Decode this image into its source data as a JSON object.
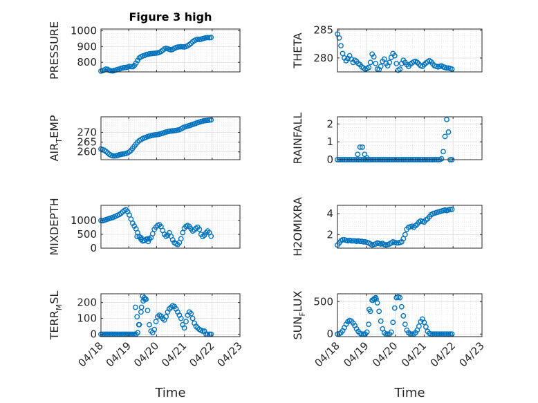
{
  "figure": {
    "title": "Figure 3 high",
    "x_label": "Time",
    "x_ticks": [
      "04/18",
      "04/19",
      "04/20",
      "04/21",
      "04/22",
      "04/23"
    ],
    "marker_color": "#0072BD"
  },
  "chart_data": [
    {
      "type": "scatter",
      "ylabel": "PRESSURE",
      "ylim": [
        740,
        1010
      ],
      "yticks": [
        800,
        900,
        1000
      ],
      "xlim": [
        0,
        5
      ],
      "grid": true,
      "x": [
        0.0,
        0.06,
        0.12,
        0.18,
        0.24,
        0.3,
        0.36,
        0.42,
        0.48,
        0.54,
        0.6,
        0.66,
        0.72,
        0.78,
        0.84,
        0.9,
        0.96,
        1.02,
        1.08,
        1.14,
        1.2,
        1.26,
        1.32,
        1.38,
        1.44,
        1.5,
        1.56,
        1.62,
        1.68,
        1.74,
        1.8,
        1.86,
        1.92,
        1.98,
        2.04,
        2.1,
        2.16,
        2.22,
        2.28,
        2.34,
        2.4,
        2.46,
        2.52,
        2.58,
        2.64,
        2.7,
        2.76,
        2.82,
        2.88,
        2.94,
        3.0,
        3.06,
        3.12,
        3.18,
        3.24,
        3.3,
        3.36,
        3.42,
        3.48,
        3.54,
        3.6,
        3.66,
        3.72,
        3.78,
        3.84,
        3.9,
        3.96
      ],
      "y": [
        745,
        748,
        752,
        758,
        756,
        750,
        747,
        746,
        749,
        752,
        755,
        758,
        762,
        765,
        767,
        768,
        770,
        775,
        773,
        772,
        780,
        795,
        812,
        828,
        835,
        840,
        843,
        848,
        851,
        853,
        855,
        856,
        857,
        858,
        860,
        863,
        868,
        876,
        884,
        888,
        886,
        882,
        879,
        882,
        888,
        893,
        896,
        898,
        899,
        898,
        897,
        900,
        905,
        912,
        920,
        930,
        937,
        942,
        945,
        944,
        946,
        950,
        953,
        955,
        956,
        955,
        957
      ]
    },
    {
      "type": "scatter",
      "ylabel": "THETA",
      "ylim": [
        277.5,
        285.2
      ],
      "yticks": [
        280,
        285
      ],
      "xlim": [
        0,
        5
      ],
      "grid": true,
      "x": [
        0.0,
        0.06,
        0.12,
        0.18,
        0.24,
        0.3,
        0.36,
        0.42,
        0.48,
        0.54,
        0.6,
        0.66,
        0.72,
        0.78,
        0.84,
        0.9,
        0.96,
        1.02,
        1.08,
        1.14,
        1.2,
        1.26,
        1.32,
        1.38,
        1.44,
        1.5,
        1.56,
        1.62,
        1.68,
        1.74,
        1.8,
        1.86,
        1.92,
        1.98,
        2.04,
        2.1,
        2.16,
        2.22,
        2.28,
        2.34,
        2.4,
        2.46,
        2.52,
        2.58,
        2.64,
        2.7,
        2.76,
        2.82,
        2.88,
        2.94,
        3.0,
        3.06,
        3.12,
        3.18,
        3.24,
        3.3,
        3.36,
        3.42,
        3.48,
        3.54,
        3.6,
        3.66,
        3.72,
        3.78,
        3.84,
        3.9,
        3.96
      ],
      "y": [
        284.3,
        283.6,
        282.2,
        280.8,
        280.0,
        279.5,
        279.9,
        280.4,
        279.8,
        279.2,
        279.6,
        279.4,
        279.0,
        278.8,
        278.4,
        278.2,
        278.0,
        278.1,
        278.3,
        279.2,
        280.7,
        280.2,
        279.0,
        278.0,
        277.9,
        278.5,
        279.4,
        279.8,
        279.0,
        278.6,
        279.2,
        280.1,
        280.8,
        280.4,
        279.0,
        277.8,
        278.0,
        279.0,
        279.6,
        279.2,
        278.8,
        278.5,
        278.9,
        279.1,
        279.3,
        279.4,
        279.2,
        278.9,
        278.6,
        278.5,
        278.8,
        279.1,
        279.3,
        279.5,
        279.3,
        278.9,
        278.6,
        278.5,
        278.4,
        278.5,
        278.6,
        278.4,
        278.3,
        278.2,
        278.2,
        278.1,
        278.0
      ]
    },
    {
      "type": "scatter",
      "ylabel": "AIR_TEMP",
      "ylim": [
        256,
        278
      ],
      "yticks": [
        260,
        265,
        270
      ],
      "xlim": [
        0,
        5
      ],
      "grid": true,
      "x": [
        0.0,
        0.06,
        0.12,
        0.18,
        0.24,
        0.3,
        0.36,
        0.42,
        0.48,
        0.54,
        0.6,
        0.66,
        0.72,
        0.78,
        0.84,
        0.9,
        0.96,
        1.02,
        1.08,
        1.14,
        1.2,
        1.26,
        1.32,
        1.38,
        1.44,
        1.5,
        1.56,
        1.62,
        1.68,
        1.74,
        1.8,
        1.86,
        1.92,
        1.98,
        2.04,
        2.1,
        2.16,
        2.22,
        2.28,
        2.34,
        2.4,
        2.46,
        2.52,
        2.58,
        2.64,
        2.7,
        2.76,
        2.82,
        2.88,
        2.94,
        3.0,
        3.06,
        3.12,
        3.18,
        3.24,
        3.3,
        3.36,
        3.42,
        3.48,
        3.54,
        3.6,
        3.66,
        3.72,
        3.78,
        3.84,
        3.9,
        3.96
      ],
      "y": [
        261.5,
        261.2,
        260.8,
        260.2,
        259.5,
        258.8,
        258.3,
        258.0,
        257.9,
        258.0,
        258.2,
        258.5,
        258.7,
        258.9,
        259.0,
        259.2,
        259.5,
        260.0,
        260.8,
        261.8,
        262.9,
        264.0,
        265.0,
        265.8,
        266.3,
        266.8,
        267.2,
        267.5,
        267.9,
        268.1,
        268.3,
        268.5,
        268.7,
        268.8,
        268.9,
        269.1,
        269.3,
        269.6,
        269.9,
        270.2,
        270.4,
        270.6,
        270.7,
        270.8,
        270.9,
        271.0,
        271.2,
        271.4,
        271.8,
        272.3,
        272.7,
        273.0,
        273.2,
        273.5,
        273.8,
        274.1,
        274.4,
        274.7,
        275.0,
        275.3,
        275.6,
        275.8,
        276.0,
        276.1,
        276.2,
        276.3,
        276.4
      ]
    },
    {
      "type": "scatter",
      "ylabel": "RAINFALL",
      "ylim": [
        0,
        2.4
      ],
      "yticks": [
        0,
        1,
        2
      ],
      "xlim": [
        0,
        5
      ],
      "grid": true,
      "x": [
        0.0,
        0.06,
        0.12,
        0.18,
        0.24,
        0.3,
        0.36,
        0.42,
        0.48,
        0.54,
        0.6,
        0.66,
        0.72,
        0.78,
        0.84,
        0.9,
        0.96,
        1.02,
        1.08,
        1.14,
        1.2,
        1.26,
        1.32,
        1.38,
        1.44,
        1.5,
        1.56,
        1.62,
        1.68,
        1.74,
        1.8,
        1.86,
        1.92,
        1.98,
        2.04,
        2.1,
        2.16,
        2.22,
        2.28,
        2.34,
        2.4,
        2.46,
        2.52,
        2.58,
        2.64,
        2.7,
        2.76,
        2.82,
        2.88,
        2.94,
        3.0,
        3.06,
        3.12,
        3.18,
        3.24,
        3.3,
        3.36,
        3.42,
        3.48,
        3.54,
        3.6,
        3.66,
        3.72,
        3.78,
        3.84,
        3.9,
        3.96,
        0.7,
        0.78,
        0.86,
        0.94,
        1.02
      ],
      "y": [
        0,
        0,
        0,
        0,
        0,
        0,
        0,
        0,
        0,
        0,
        0,
        0,
        0,
        0,
        0,
        0,
        0,
        0,
        0,
        0,
        0,
        0,
        0,
        0,
        0,
        0,
        0,
        0,
        0,
        0,
        0,
        0,
        0,
        0,
        0,
        0,
        0,
        0,
        0,
        0,
        0,
        0,
        0,
        0,
        0,
        0,
        0,
        0,
        0,
        0,
        0,
        0,
        0,
        0,
        0,
        0,
        0,
        0,
        0,
        0,
        0.05,
        0.45,
        1.3,
        2.25,
        1.55,
        0,
        0,
        0.3,
        0.7,
        0.7,
        0.3,
        0.1
      ]
    },
    {
      "type": "scatter",
      "ylabel": "MIXDEPTH",
      "ylim": [
        0,
        1550
      ],
      "yticks": [
        0,
        500,
        1000
      ],
      "xlim": [
        0,
        5
      ],
      "grid": true,
      "x": [
        0.0,
        0.06,
        0.12,
        0.18,
        0.24,
        0.3,
        0.36,
        0.42,
        0.48,
        0.54,
        0.6,
        0.66,
        0.72,
        0.78,
        0.84,
        0.9,
        0.96,
        1.02,
        1.08,
        1.14,
        1.2,
        1.26,
        1.32,
        1.38,
        1.44,
        1.5,
        1.56,
        1.62,
        1.68,
        1.74,
        1.8,
        1.86,
        1.92,
        1.98,
        2.04,
        2.1,
        2.16,
        2.22,
        2.28,
        2.34,
        2.4,
        2.46,
        2.52,
        2.58,
        2.64,
        2.7,
        2.76,
        2.82,
        2.88,
        2.94,
        3.0,
        3.06,
        3.12,
        3.18,
        3.24,
        3.3,
        3.36,
        3.42,
        3.48,
        3.54,
        3.6,
        3.66,
        3.72,
        3.78,
        3.84,
        3.9,
        3.96,
        1.3,
        1.44,
        1.56,
        1.7
      ],
      "y": [
        1000,
        990,
        1010,
        1030,
        1050,
        1070,
        1090,
        1110,
        1130,
        1160,
        1190,
        1220,
        1260,
        1310,
        1360,
        1390,
        1320,
        1200,
        1050,
        900,
        800,
        700,
        560,
        420,
        320,
        260,
        270,
        320,
        340,
        330,
        380,
        520,
        680,
        760,
        820,
        850,
        780,
        640,
        500,
        430,
        470,
        560,
        430,
        300,
        200,
        160,
        130,
        200,
        340,
        560,
        720,
        790,
        820,
        780,
        700,
        620,
        660,
        720,
        760,
        680,
        500,
        420,
        470,
        560,
        620,
        560,
        430,
        420,
        380,
        280,
        240
      ]
    },
    {
      "type": "scatter",
      "ylabel": "H2OMIXRA",
      "ylim": [
        0.7,
        4.8
      ],
      "yticks": [
        2,
        4
      ],
      "xlim": [
        0,
        5
      ],
      "grid": true,
      "x": [
        0.0,
        0.06,
        0.12,
        0.18,
        0.24,
        0.3,
        0.36,
        0.42,
        0.48,
        0.54,
        0.6,
        0.66,
        0.72,
        0.78,
        0.84,
        0.9,
        0.96,
        1.02,
        1.08,
        1.14,
        1.2,
        1.26,
        1.32,
        1.38,
        1.44,
        1.5,
        1.56,
        1.62,
        1.68,
        1.74,
        1.8,
        1.86,
        1.92,
        1.98,
        2.04,
        2.1,
        2.16,
        2.22,
        2.28,
        2.34,
        2.4,
        2.46,
        2.52,
        2.58,
        2.64,
        2.7,
        2.76,
        2.82,
        2.88,
        2.94,
        3.0,
        3.06,
        3.12,
        3.18,
        3.24,
        3.3,
        3.36,
        3.42,
        3.48,
        3.54,
        3.6,
        3.66,
        3.72,
        3.78,
        3.84,
        3.9,
        3.96
      ],
      "y": [
        1.0,
        1.2,
        1.4,
        1.5,
        1.5,
        1.45,
        1.4,
        1.45,
        1.4,
        1.4,
        1.4,
        1.35,
        1.4,
        1.35,
        1.35,
        1.3,
        1.3,
        1.25,
        1.2,
        1.1,
        1.0,
        1.05,
        1.1,
        1.2,
        1.15,
        1.1,
        1.15,
        1.05,
        1.0,
        1.05,
        1.1,
        1.2,
        1.3,
        1.25,
        1.2,
        1.2,
        1.25,
        1.3,
        1.6,
        2.0,
        2.5,
        2.7,
        2.75,
        2.8,
        2.7,
        2.85,
        3.0,
        3.2,
        3.3,
        3.25,
        3.2,
        3.4,
        3.5,
        3.7,
        3.9,
        4.0,
        4.05,
        4.1,
        4.15,
        4.2,
        4.25,
        4.3,
        4.35,
        4.3,
        4.35,
        4.4,
        4.4
      ]
    },
    {
      "type": "scatter",
      "ylabel": "TERR_MSL",
      "ylim": [
        -15,
        255
      ],
      "yticks": [
        0,
        100,
        200
      ],
      "xlim": [
        0,
        5
      ],
      "grid": true,
      "x": [
        0.0,
        0.06,
        0.12,
        0.18,
        0.24,
        0.3,
        0.36,
        0.42,
        0.48,
        0.54,
        0.6,
        0.66,
        0.72,
        0.78,
        0.84,
        0.9,
        0.96,
        1.02,
        1.08,
        1.14,
        1.2,
        1.26,
        1.32,
        1.38,
        1.44,
        1.5,
        1.56,
        1.62,
        1.68,
        1.74,
        1.8,
        1.86,
        1.92,
        1.98,
        2.04,
        2.1,
        2.16,
        2.22,
        2.28,
        2.34,
        2.4,
        2.46,
        2.52,
        2.58,
        2.64,
        2.7,
        2.76,
        2.82,
        2.88,
        2.94,
        3.0,
        3.06,
        3.12,
        3.18,
        3.24,
        3.3,
        3.36,
        3.42,
        3.48,
        3.54,
        3.6,
        3.66,
        3.72,
        3.78,
        3.84,
        3.9,
        3.96,
        1.24,
        1.3,
        1.36,
        1.46,
        1.52,
        1.58
      ],
      "y": [
        0,
        0,
        0,
        0,
        0,
        0,
        0,
        0,
        0,
        0,
        0,
        0,
        0,
        0,
        0,
        0,
        0,
        0,
        0,
        0,
        0,
        0,
        10,
        60,
        140,
        240,
        230,
        220,
        150,
        60,
        20,
        10,
        30,
        80,
        110,
        120,
        115,
        100,
        90,
        110,
        140,
        160,
        170,
        180,
        175,
        160,
        140,
        120,
        100,
        60,
        40,
        80,
        120,
        140,
        130,
        100,
        70,
        50,
        40,
        30,
        25,
        20,
        20,
        0,
        0,
        0,
        0,
        170,
        110,
        60,
        170,
        210,
        220
      ]
    },
    {
      "type": "scatter",
      "ylabel": "SUN_FLUX",
      "ylim": [
        -40,
        620
      ],
      "yticks": [
        0,
        500
      ],
      "xlim": [
        0,
        5
      ],
      "grid": true,
      "x": [
        0.0,
        0.06,
        0.12,
        0.18,
        0.24,
        0.3,
        0.36,
        0.42,
        0.48,
        0.54,
        0.6,
        0.66,
        0.72,
        0.78,
        0.84,
        0.9,
        0.96,
        1.02,
        1.08,
        1.14,
        1.2,
        1.26,
        1.32,
        1.38,
        1.44,
        1.5,
        1.56,
        1.62,
        1.68,
        1.74,
        1.8,
        1.86,
        1.92,
        1.98,
        2.04,
        2.1,
        2.16,
        2.22,
        2.28,
        2.34,
        2.4,
        2.46,
        2.52,
        2.58,
        2.64,
        2.7,
        2.76,
        2.82,
        2.88,
        2.94,
        3.0,
        3.06,
        3.12,
        3.18,
        3.24,
        3.3,
        3.36,
        3.42,
        3.48,
        3.54,
        3.6,
        3.66,
        3.72,
        3.78,
        3.84,
        3.9,
        3.96,
        1.1,
        1.22,
        1.28,
        1.34
      ],
      "y": [
        0,
        5,
        20,
        50,
        100,
        150,
        190,
        210,
        200,
        170,
        130,
        80,
        40,
        10,
        0,
        0,
        0,
        30,
        150,
        350,
        520,
        540,
        560,
        480,
        350,
        200,
        80,
        20,
        0,
        0,
        0,
        30,
        180,
        400,
        560,
        570,
        560,
        420,
        280,
        150,
        60,
        20,
        0,
        0,
        0,
        20,
        60,
        120,
        190,
        230,
        180,
        110,
        40,
        10,
        0,
        0,
        0,
        0,
        0,
        0,
        0,
        0,
        0,
        0,
        0,
        0,
        0,
        380,
        520,
        540,
        540
      ]
    }
  ]
}
